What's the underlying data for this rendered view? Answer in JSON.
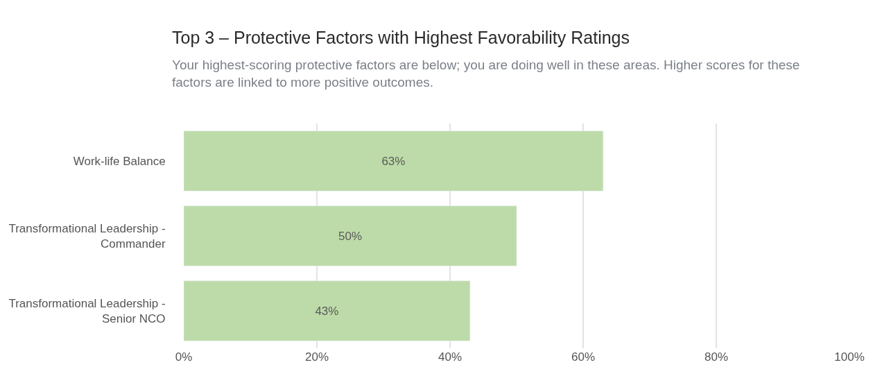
{
  "chart_data": {
    "type": "bar",
    "orientation": "horizontal",
    "title": "Top 3 – Protective Factors with Highest Favorability Ratings",
    "subtitle": "Your highest-scoring protective factors are below; you are doing well in these areas. Higher scores for these\nfactors are linked to more positive outcomes.",
    "categories": [
      "Work-life Balance",
      "Transformational Leadership -\nCommander",
      "Transformational Leadership -\nSenior NCO"
    ],
    "values": [
      63,
      50,
      43
    ],
    "value_labels": [
      "63%",
      "50%",
      "43%"
    ],
    "color": "#bddba8",
    "xlim": [
      0,
      100
    ],
    "xticks": [
      {
        "value": 0,
        "label": "0%"
      },
      {
        "value": 20,
        "label": "20%"
      },
      {
        "value": 40,
        "label": "40%"
      },
      {
        "value": 60,
        "label": "60%"
      },
      {
        "value": 80,
        "label": "80%"
      },
      {
        "value": 100,
        "label": "100%"
      }
    ],
    "grid": "x",
    "legend": false
  }
}
